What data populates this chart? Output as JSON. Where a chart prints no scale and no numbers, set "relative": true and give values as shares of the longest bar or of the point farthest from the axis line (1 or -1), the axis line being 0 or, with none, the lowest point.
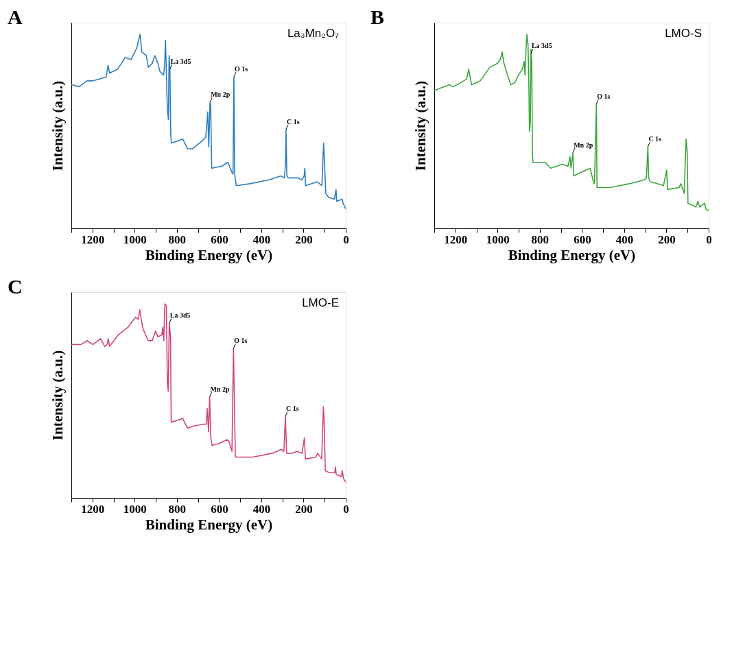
{
  "chart_data": [
    {
      "type": "line",
      "title": "A",
      "xlabel": "Binding Energy (eV)",
      "ylabel": "Intensity (a.u.)",
      "xlim": [
        1300,
        0
      ],
      "xticks": [
        {
          "value": 1300,
          "label": null
        },
        1200,
        {
          "value": 1100,
          "label": null
        },
        1000,
        {
          "value": 900,
          "label": null
        },
        800,
        {
          "value": 700,
          "label": null
        },
        600,
        {
          "value": 500,
          "label": null
        },
        400,
        {
          "value": 300,
          "label": null
        },
        200,
        {
          "value": 100,
          "label": null
        },
        0
      ],
      "relative": true,
      "tick_labels": "x",
      "series": [
        {
          "color": "#2e7ebc",
          "x": [
            1299,
            1263,
            1226,
            1199,
            1135,
            1126,
            1119,
            1081,
            1045,
            1017,
            990,
            974,
            967,
            945,
            935,
            917,
            904,
            890,
            881,
            863,
            858,
            854,
            849,
            845,
            840,
            837,
            833,
            829,
            826,
            799,
            772,
            749,
            726,
            681,
            663,
            654,
            649,
            643,
            640,
            635,
            590,
            558,
            540,
            534,
            530,
            526,
            519,
            454,
            363,
            308,
            290,
            285,
            283,
            279,
            272,
            226,
            208,
            197,
            194,
            190,
            135,
            113,
            105,
            102,
            95,
            81,
            54,
            46,
            43,
            17,
            13,
            0
          ],
          "values": [
            0.74,
            0.73,
            0.76,
            0.76,
            0.78,
            0.84,
            0.8,
            0.82,
            0.88,
            0.87,
            0.93,
            1.0,
            0.91,
            0.89,
            0.83,
            0.85,
            0.89,
            0.85,
            0.81,
            0.79,
            0.84,
            0.97,
            0.77,
            0.61,
            0.56,
            0.89,
            0.82,
            0.48,
            0.44,
            0.45,
            0.46,
            0.41,
            0.41,
            0.45,
            0.47,
            0.6,
            0.42,
            0.65,
            0.64,
            0.31,
            0.32,
            0.34,
            0.29,
            0.28,
            0.78,
            0.28,
            0.22,
            0.23,
            0.25,
            0.27,
            0.26,
            0.35,
            0.51,
            0.27,
            0.26,
            0.26,
            0.25,
            0.27,
            0.31,
            0.22,
            0.24,
            0.22,
            0.44,
            0.38,
            0.18,
            0.16,
            0.15,
            0.2,
            0.14,
            0.15,
            0.13,
            0.1
          ]
        }
      ],
      "annotations": [
        "La₃Mn₂O₇",
        {
          "text": "La 3d5",
          "x": 833,
          "y": 0.82
        },
        {
          "text": "Mn 2p",
          "x": 643,
          "y": 0.65
        },
        {
          "text": "O 1s",
          "x": 530,
          "y": 0.78
        },
        {
          "text": "C 1s",
          "x": 283,
          "y": 0.51
        }
      ]
    },
    {
      "type": "line",
      "title": "B",
      "xlabel": "Binding Energy (eV)",
      "ylabel": "Intensity (a.u.)",
      "xlim": [
        1300,
        0
      ],
      "xticks": [
        {
          "value": 1300,
          "label": null
        },
        1200,
        {
          "value": 1100,
          "label": null
        },
        1000,
        {
          "value": 900,
          "label": null
        },
        800,
        {
          "value": 700,
          "label": null
        },
        600,
        {
          "value": 500,
          "label": null
        },
        400,
        {
          "value": 300,
          "label": null
        },
        200,
        {
          "value": 100,
          "label": null
        },
        0
      ],
      "relative": true,
      "tick_labels": "x",
      "series": [
        {
          "color": "#3ca53c",
          "x": [
            1300,
            1254,
            1227,
            1214,
            1191,
            1146,
            1137,
            1132,
            1123,
            1082,
            1037,
            1001,
            987,
            978,
            972,
            956,
            938,
            919,
            901,
            883,
            874,
            870,
            865,
            861,
            856,
            852,
            849,
            845,
            842,
            838,
            835,
            832,
            802,
            775,
            748,
            693,
            666,
            657,
            652,
            643,
            639,
            603,
            562,
            548,
            541,
            532,
            529,
            467,
            376,
            304,
            295,
            288,
            284,
            277,
            241,
            214,
            199,
            195,
            141,
            132,
            116,
            107,
            102,
            98,
            60,
            51,
            43,
            19,
            14,
            0
          ],
          "values": [
            0.71,
            0.73,
            0.74,
            0.73,
            0.74,
            0.77,
            0.82,
            0.79,
            0.74,
            0.76,
            0.83,
            0.85,
            0.87,
            0.91,
            0.86,
            0.8,
            0.74,
            0.75,
            0.79,
            0.82,
            0.86,
            0.79,
            0.93,
            1.0,
            0.95,
            0.76,
            0.5,
            0.54,
            0.92,
            0.86,
            0.38,
            0.34,
            0.34,
            0.34,
            0.31,
            0.33,
            0.32,
            0.37,
            0.31,
            0.39,
            0.27,
            0.29,
            0.31,
            0.25,
            0.23,
            0.64,
            0.21,
            0.21,
            0.23,
            0.25,
            0.26,
            0.42,
            0.26,
            0.24,
            0.23,
            0.22,
            0.3,
            0.2,
            0.21,
            0.23,
            0.18,
            0.46,
            0.4,
            0.13,
            0.11,
            0.14,
            0.11,
            0.13,
            0.1,
            0.09
          ]
        }
      ],
      "annotations": [
        "LMO-S",
        {
          "text": "La 3d5",
          "x": 842,
          "y": 0.9
        },
        {
          "text": "Mn 2p",
          "x": 643,
          "y": 0.39
        },
        {
          "text": "O 1s",
          "x": 532,
          "y": 0.64
        },
        {
          "text": "C 1s",
          "x": 288,
          "y": 0.42
        }
      ]
    },
    {
      "type": "line",
      "title": "C",
      "xlabel": "Binding Energy (eV)",
      "ylabel": "Intensity (a.u.)",
      "xlim": [
        1300,
        0
      ],
      "xticks": [
        {
          "value": 1300,
          "label": null
        },
        1200,
        {
          "value": 1100,
          "label": null
        },
        1000,
        {
          "value": 900,
          "label": null
        },
        800,
        {
          "value": 700,
          "label": null
        },
        600,
        {
          "value": 500,
          "label": null
        },
        400,
        {
          "value": 300,
          "label": null
        },
        200,
        {
          "value": 100,
          "label": null
        },
        0
      ],
      "relative": true,
      "tick_labels": "x",
      "series": [
        {
          "color": "#d0457f",
          "x": [
            1299,
            1254,
            1226,
            1198,
            1161,
            1142,
            1131,
            1125,
            1119,
            1078,
            1031,
            997,
            983,
            976,
            969,
            960,
            936,
            917,
            901,
            890,
            871,
            867,
            862,
            857,
            850,
            845,
            841,
            836,
            830,
            827,
            796,
            773,
            750,
            721,
            675,
            661,
            656,
            650,
            645,
            639,
            633,
            600,
            563,
            553,
            539,
            532,
            523,
            441,
            348,
            306,
            293,
            286,
            280,
            254,
            231,
            207,
            196,
            191,
            142,
            133,
            114,
            106,
            103,
            97,
            77,
            52,
            49,
            45,
            21,
            16,
            11,
            0
          ],
          "values": [
            0.79,
            0.79,
            0.81,
            0.79,
            0.82,
            0.78,
            0.79,
            0.82,
            0.78,
            0.84,
            0.88,
            0.93,
            0.92,
            0.97,
            0.92,
            0.87,
            0.81,
            0.81,
            0.86,
            0.83,
            0.84,
            0.88,
            0.81,
            1.0,
            0.99,
            0.59,
            0.55,
            0.9,
            0.83,
            0.39,
            0.4,
            0.41,
            0.36,
            0.37,
            0.38,
            0.38,
            0.46,
            0.34,
            0.52,
            0.31,
            0.27,
            0.28,
            0.3,
            0.29,
            0.24,
            0.77,
            0.21,
            0.21,
            0.23,
            0.25,
            0.24,
            0.42,
            0.23,
            0.23,
            0.24,
            0.23,
            0.31,
            0.2,
            0.21,
            0.23,
            0.2,
            0.47,
            0.42,
            0.14,
            0.13,
            0.13,
            0.16,
            0.12,
            0.11,
            0.14,
            0.1,
            0.08
          ]
        }
      ],
      "annotations": [
        "LMO-E",
        {
          "text": "La 3d5",
          "x": 836,
          "y": 0.9
        },
        {
          "text": "Mn 2p",
          "x": 645,
          "y": 0.52
        },
        {
          "text": "O 1s",
          "x": 532,
          "y": 0.77
        },
        {
          "text": "C 1s",
          "x": 286,
          "y": 0.42
        }
      ]
    }
  ]
}
